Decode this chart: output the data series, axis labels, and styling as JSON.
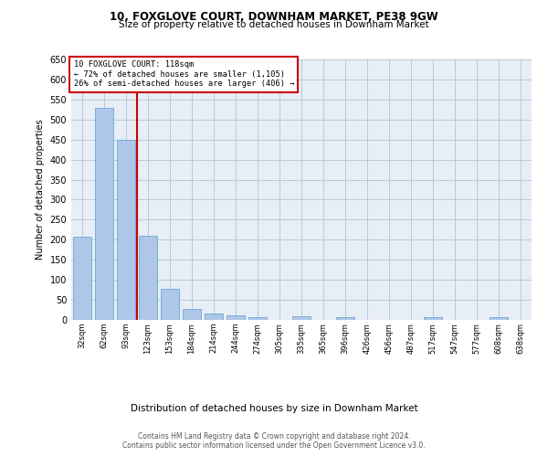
{
  "title": "10, FOXGLOVE COURT, DOWNHAM MARKET, PE38 9GW",
  "subtitle": "Size of property relative to detached houses in Downham Market",
  "xlabel": "Distribution of detached houses by size in Downham Market",
  "ylabel": "Number of detached properties",
  "bar_labels": [
    "32sqm",
    "62sqm",
    "93sqm",
    "123sqm",
    "153sqm",
    "184sqm",
    "214sqm",
    "244sqm",
    "274sqm",
    "305sqm",
    "335sqm",
    "365sqm",
    "396sqm",
    "426sqm",
    "456sqm",
    "487sqm",
    "517sqm",
    "547sqm",
    "577sqm",
    "608sqm",
    "638sqm"
  ],
  "bar_values": [
    207,
    530,
    450,
    210,
    78,
    27,
    15,
    12,
    7,
    0,
    9,
    0,
    6,
    0,
    0,
    0,
    6,
    0,
    0,
    6,
    0
  ],
  "bar_color": "#aec6e8",
  "bar_edge_color": "#5a9fd4",
  "annotation_box_text": "10 FOXGLOVE COURT: 118sqm\n← 72% of detached houses are smaller (1,105)\n26% of semi-detached houses are larger (406) →",
  "vline_color": "#cc0000",
  "grid_color": "#b0c4d8",
  "background_color": "#e8eef5",
  "footer_text": "Contains HM Land Registry data © Crown copyright and database right 2024.\nContains public sector information licensed under the Open Government Licence v3.0.",
  "ylim": [
    0,
    650
  ],
  "yticks": [
    0,
    50,
    100,
    150,
    200,
    250,
    300,
    350,
    400,
    450,
    500,
    550,
    600,
    650
  ]
}
